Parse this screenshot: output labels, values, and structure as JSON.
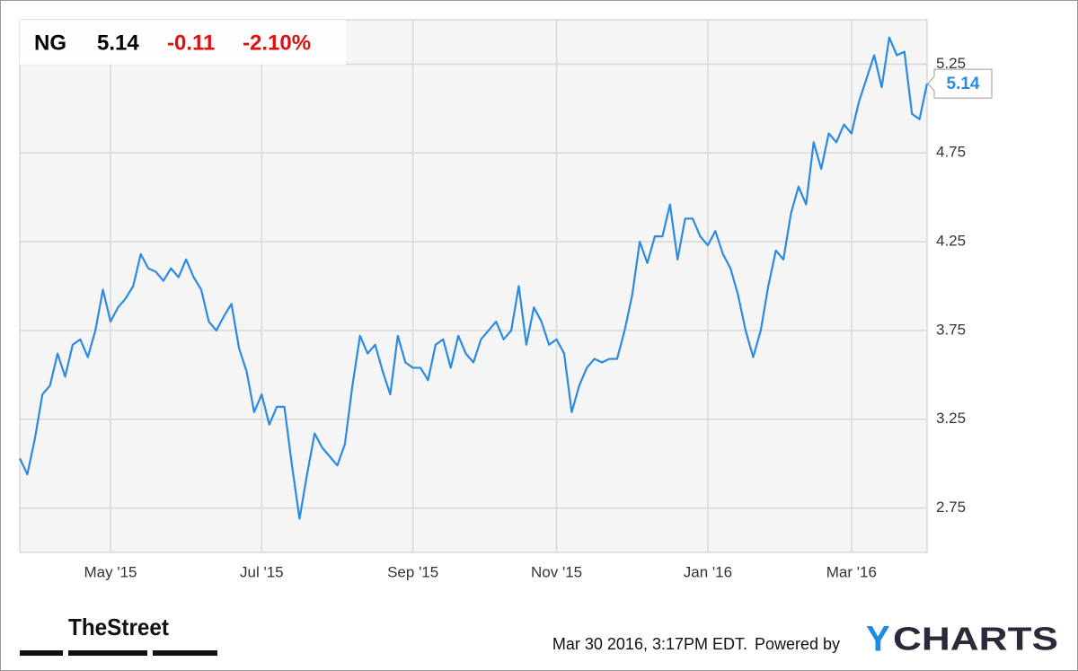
{
  "header": {
    "symbol": "NG",
    "price": "5.14",
    "change": "-0.11",
    "change_percent": "-2.10%"
  },
  "chart_data": {
    "type": "line",
    "categories": [
      null,
      null,
      null,
      null,
      null,
      null,
      null,
      null,
      null,
      null,
      null,
      null,
      "May '15",
      null,
      null,
      null,
      null,
      null,
      null,
      null,
      null,
      null,
      null,
      null,
      null,
      null,
      null,
      null,
      null,
      null,
      null,
      null,
      "Jul '15",
      null,
      null,
      null,
      null,
      null,
      null,
      null,
      null,
      null,
      null,
      null,
      null,
      null,
      null,
      null,
      null,
      null,
      null,
      null,
      "Sep '15",
      null,
      null,
      null,
      null,
      null,
      null,
      null,
      null,
      null,
      null,
      null,
      null,
      null,
      null,
      null,
      null,
      null,
      null,
      "Nov '15",
      null,
      null,
      null,
      null,
      null,
      null,
      null,
      null,
      null,
      null,
      null,
      null,
      null,
      null,
      null,
      null,
      null,
      null,
      null,
      "Jan '16",
      null,
      null,
      null,
      null,
      null,
      null,
      null,
      null,
      null,
      null,
      null,
      null,
      null,
      null,
      null,
      null,
      null,
      null,
      "Mar '16",
      null,
      null,
      null,
      null,
      null,
      null,
      null,
      null,
      null,
      null
    ],
    "values": [
      3.03,
      2.94,
      3.14,
      3.39,
      3.44,
      3.62,
      3.49,
      3.67,
      3.7,
      3.6,
      3.75,
      3.98,
      3.8,
      3.88,
      3.93,
      4.0,
      4.18,
      4.1,
      4.08,
      4.03,
      4.1,
      4.05,
      4.15,
      4.05,
      3.98,
      3.8,
      3.75,
      3.83,
      3.9,
      3.65,
      3.52,
      3.29,
      3.39,
      3.22,
      3.32,
      3.32,
      2.99,
      2.69,
      2.94,
      3.17,
      3.09,
      3.04,
      2.99,
      3.11,
      3.44,
      3.72,
      3.62,
      3.67,
      3.52,
      3.39,
      3.72,
      3.57,
      3.54,
      3.54,
      3.47,
      3.67,
      3.7,
      3.54,
      3.72,
      3.62,
      3.57,
      3.7,
      3.75,
      3.8,
      3.7,
      3.75,
      4.0,
      3.67,
      3.88,
      3.8,
      3.67,
      3.7,
      3.62,
      3.29,
      3.44,
      3.54,
      3.59,
      3.57,
      3.59,
      3.59,
      3.75,
      3.95,
      4.25,
      4.13,
      4.28,
      4.28,
      4.46,
      4.15,
      4.38,
      4.38,
      4.28,
      4.23,
      4.31,
      4.18,
      4.1,
      3.95,
      3.75,
      3.6,
      3.75,
      4.0,
      4.2,
      4.15,
      4.41,
      4.56,
      4.46,
      4.81,
      4.66,
      4.86,
      4.81,
      4.91,
      4.86,
      5.04,
      5.17,
      5.3,
      5.12,
      5.4,
      5.3,
      5.32,
      4.97,
      4.94,
      5.14
    ],
    "color": "#2b8ae2",
    "ylim": [
      2.5,
      5.5
    ],
    "yticks": [
      2.75,
      3.25,
      3.75,
      4.25,
      4.75,
      5.25
    ],
    "grid": true
  },
  "footer": {
    "timestamp": "Mar 30 2016, 3:17PM EDT.",
    "powered_by": "Powered by",
    "brand_initial": "Y",
    "brand_rest": "CHARTS",
    "publisher": "TheStreet"
  }
}
